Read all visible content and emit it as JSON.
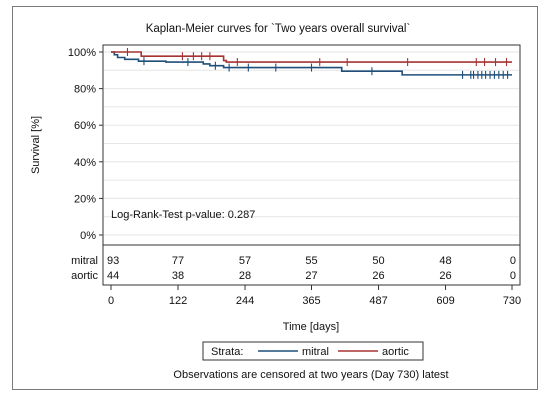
{
  "chart_data": {
    "type": "line",
    "title": "Kaplan-Meier curves for `Two years overall survival`",
    "xlabel": "Time [days]",
    "ylabel": "Survival [%]",
    "xlim": [
      0,
      730
    ],
    "ylim": [
      0,
      100
    ],
    "x_ticks": [
      0,
      122,
      244,
      365,
      487,
      609,
      730
    ],
    "y_ticks": [
      0,
      20,
      40,
      60,
      80,
      100
    ],
    "y_tick_labels": [
      "0%",
      "20%",
      "40%",
      "60%",
      "80%",
      "100%"
    ],
    "grid": true,
    "annotation": "Log-Rank-Test p-value: 0.287",
    "legend": {
      "placement": "bottom",
      "title": "Strata:",
      "entries": [
        "mitral",
        "aortic"
      ]
    },
    "series": [
      {
        "name": "mitral",
        "color": "#1f4e79",
        "steps": [
          [
            0,
            100
          ],
          [
            6,
            98.5
          ],
          [
            12,
            97
          ],
          [
            25,
            96
          ],
          [
            50,
            95
          ],
          [
            100,
            94.5
          ],
          [
            168,
            93.5
          ],
          [
            180,
            92.5
          ],
          [
            205,
            91.5
          ],
          [
            340,
            91.5
          ],
          [
            420,
            89.5
          ],
          [
            530,
            87.5
          ],
          [
            730,
            87.5
          ]
        ],
        "censored": [
          [
            60,
            95
          ],
          [
            140,
            94.5
          ],
          [
            190,
            92.5
          ],
          [
            215,
            91.5
          ],
          [
            250,
            91.5
          ],
          [
            300,
            91.5
          ],
          [
            365,
            91.5
          ],
          [
            475,
            89.5
          ],
          [
            640,
            87.5
          ],
          [
            655,
            87.5
          ],
          [
            660,
            87.5
          ],
          [
            668,
            87.5
          ],
          [
            675,
            87.5
          ],
          [
            682,
            87.5
          ],
          [
            690,
            87.5
          ],
          [
            698,
            87.5
          ],
          [
            706,
            87.5
          ],
          [
            714,
            87.5
          ],
          [
            722,
            87.5
          ]
        ]
      },
      {
        "name": "aortic",
        "color": "#a83232",
        "steps": [
          [
            0,
            100
          ],
          [
            55,
            97.7
          ],
          [
            205,
            95.3
          ],
          [
            210,
            94.5
          ],
          [
            730,
            94.5
          ]
        ],
        "censored": [
          [
            30,
            100
          ],
          [
            130,
            97.7
          ],
          [
            150,
            97.7
          ],
          [
            165,
            97.7
          ],
          [
            180,
            97.7
          ],
          [
            230,
            94.5
          ],
          [
            380,
            94.5
          ],
          [
            430,
            94.5
          ],
          [
            540,
            94.5
          ],
          [
            665,
            94.5
          ],
          [
            680,
            94.5
          ],
          [
            700,
            94.5
          ],
          [
            720,
            94.5
          ]
        ]
      }
    ],
    "risk_table": {
      "rows": [
        {
          "label": "mitral",
          "counts": [
            "93",
            "77",
            "57",
            "55",
            "50",
            "48",
            "0"
          ]
        },
        {
          "label": "aortic",
          "counts": [
            "44",
            "38",
            "28",
            "27",
            "26",
            "26",
            "0"
          ]
        }
      ]
    },
    "footnote": "Observations are censored at two years (Day 730) latest"
  }
}
